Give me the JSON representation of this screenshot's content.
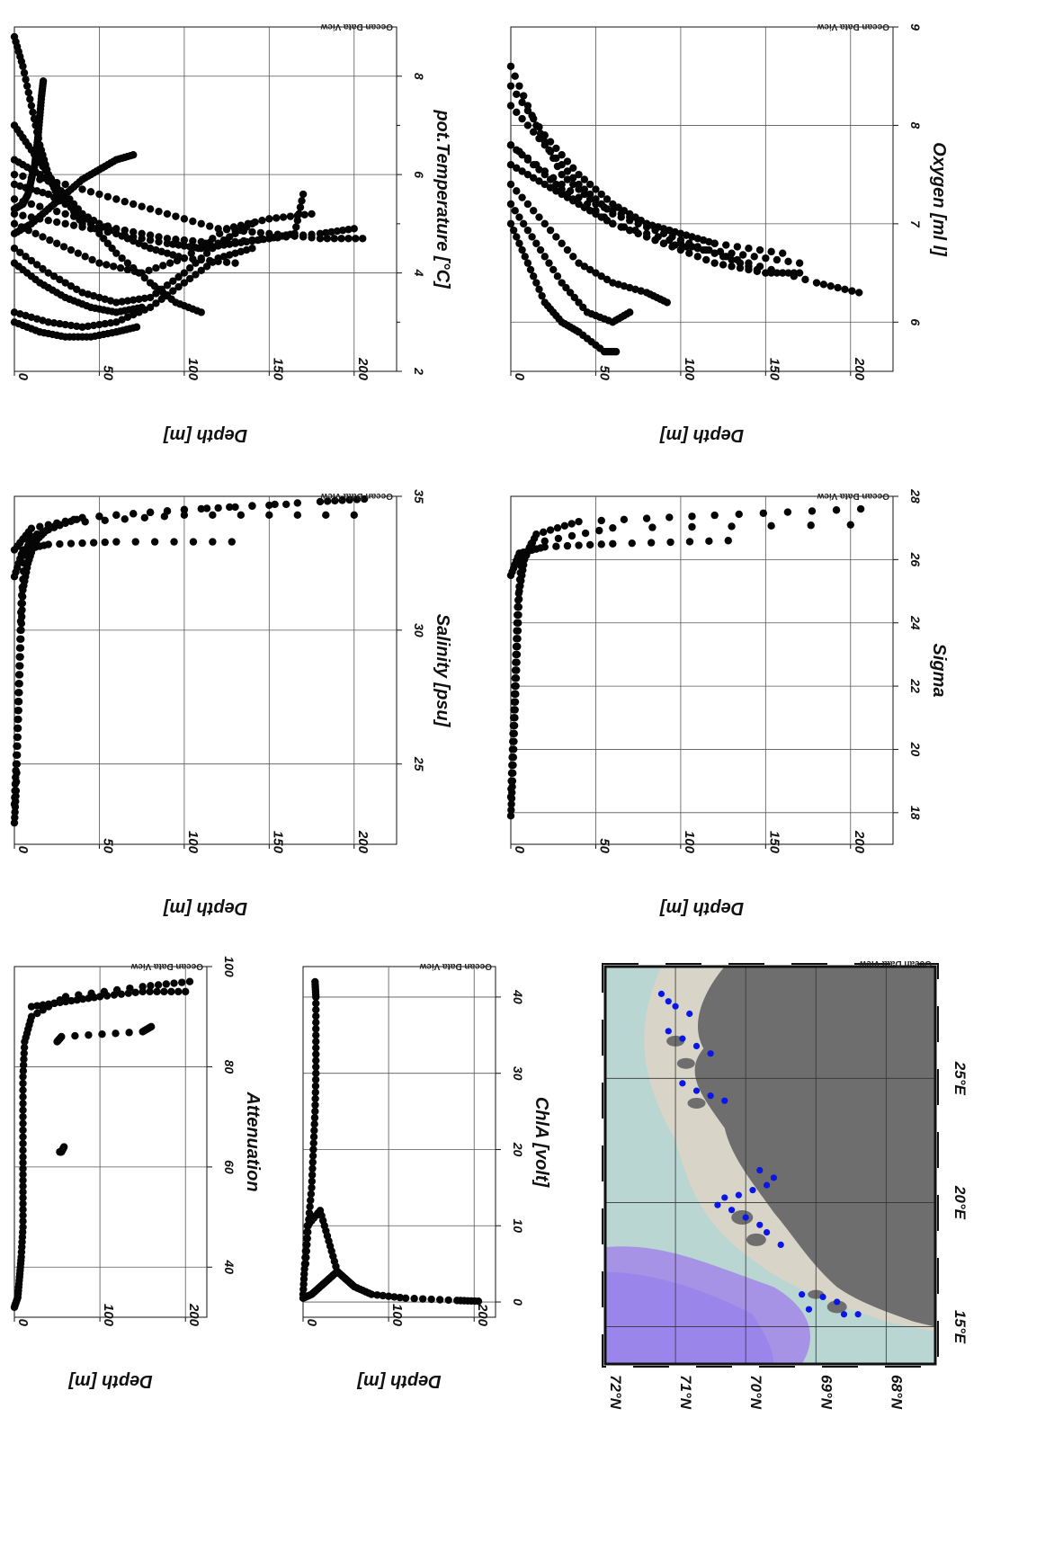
{
  "watermark": "Ocean Data View",
  "chart_data": [
    {
      "id": "temperature",
      "type": "scatter",
      "xlabel": "pot.Temperature [°C]",
      "ylabel": "Depth [m]",
      "xlim": [
        2,
        9
      ],
      "ylim": [
        0,
        225
      ],
      "x_ticks": [
        2,
        4,
        6,
        8
      ],
      "x_minor": [
        3,
        5,
        7
      ],
      "y_ticks": [
        0,
        50,
        100,
        150,
        200
      ],
      "grid": true,
      "series": [
        {
          "x": [
            5.3,
            5.4,
            5.6,
            5.9,
            6.2,
            6.5,
            6.8,
            7.2,
            7.6,
            7.9
          ],
          "y": [
            0,
            5,
            8,
            10,
            12,
            13,
            14,
            15,
            16,
            17
          ]
        },
        {
          "x": [
            4.8,
            5.0,
            5.3,
            5.6,
            5.9,
            6.1,
            6.3,
            6.4
          ],
          "y": [
            0,
            10,
            20,
            30,
            40,
            50,
            60,
            70
          ]
        },
        {
          "x": [
            6.0,
            5.8,
            5.5,
            5.2,
            4.9,
            4.8,
            4.7,
            4.7
          ],
          "y": [
            0,
            30,
            60,
            90,
            120,
            150,
            180,
            205
          ]
        },
        {
          "x": [
            5.5,
            5.2,
            4.9,
            4.7,
            4.6,
            4.7,
            4.8,
            4.9
          ],
          "y": [
            0,
            30,
            60,
            90,
            120,
            150,
            180,
            200
          ]
        },
        {
          "x": [
            5.0,
            4.6,
            4.2,
            4.0,
            4.3,
            4.9,
            5.1,
            5.2
          ],
          "y": [
            0,
            25,
            50,
            75,
            100,
            125,
            150,
            175
          ]
        },
        {
          "x": [
            4.5,
            4.0,
            3.6,
            3.4,
            3.5,
            4.0,
            4.6,
            5.0
          ],
          "y": [
            0,
            20,
            40,
            60,
            80,
            100,
            120,
            140
          ]
        },
        {
          "x": [
            3.2,
            3.0,
            2.9,
            3.0,
            3.3,
            3.8,
            4.3,
            4.5
          ],
          "y": [
            0,
            20,
            40,
            60,
            80,
            100,
            120,
            140
          ]
        },
        {
          "x": [
            3.0,
            2.8,
            2.7,
            2.7,
            2.8,
            2.9
          ],
          "y": [
            0,
            15,
            30,
            45,
            60,
            72
          ]
        },
        {
          "x": [
            5.2,
            5.0,
            4.8,
            4.6,
            4.5,
            4.6,
            4.7,
            4.8,
            5.6
          ],
          "y": [
            0,
            30,
            60,
            90,
            110,
            130,
            150,
            165,
            170
          ]
        },
        {
          "x": [
            5.8,
            5.6,
            5.2,
            4.8,
            4.5,
            4.3,
            4.2
          ],
          "y": [
            0,
            20,
            40,
            60,
            80,
            100,
            130
          ]
        },
        {
          "x": [
            6.3,
            6.0,
            5.6,
            5.0,
            4.4,
            3.8,
            3.4,
            3.2
          ],
          "y": [
            0,
            15,
            30,
            45,
            60,
            80,
            95,
            110
          ]
        },
        {
          "x": [
            4.2,
            3.8,
            3.5,
            3.3,
            3.2,
            3.3
          ],
          "y": [
            0,
            15,
            30,
            45,
            60,
            75
          ]
        },
        {
          "x": [
            7.0,
            6.5,
            6.0,
            5.5,
            5.0
          ],
          "y": [
            0,
            10,
            20,
            30,
            40
          ]
        },
        {
          "x": [
            8.8,
            8.2,
            7.4,
            6.6,
            6.0,
            5.6
          ],
          "y": [
            0,
            5,
            10,
            15,
            20,
            25
          ]
        }
      ]
    },
    {
      "id": "oxygen",
      "type": "scatter",
      "xlabel": "Oxygen [ml l]",
      "ylabel": "Depth [m]",
      "xlim": [
        5.5,
        9
      ],
      "ylim": [
        0,
        225
      ],
      "x_ticks": [
        6,
        7,
        8,
        9
      ],
      "y_ticks": [
        0,
        50,
        100,
        150,
        200
      ],
      "grid": true,
      "series": [
        {
          "x": [
            7.6,
            7.4,
            7.2,
            7.0,
            6.8,
            6.6,
            6.4,
            6.3
          ],
          "y": [
            0,
            20,
            40,
            60,
            100,
            140,
            180,
            205
          ]
        },
        {
          "x": [
            7.8,
            7.5,
            7.2,
            7.0,
            6.8,
            6.7,
            6.6
          ],
          "y": [
            0,
            20,
            40,
            60,
            90,
            130,
            170
          ]
        },
        {
          "x": [
            8.2,
            7.8,
            7.4,
            7.1,
            6.9,
            6.7,
            6.5
          ],
          "y": [
            0,
            20,
            40,
            60,
            90,
            120,
            150
          ]
        },
        {
          "x": [
            8.6,
            8.0,
            7.5,
            7.2,
            7.0,
            6.8,
            6.7
          ],
          "y": [
            0,
            15,
            30,
            50,
            80,
            120,
            160
          ]
        },
        {
          "x": [
            7.2,
            6.8,
            6.4,
            6.1,
            6.0,
            6.1
          ],
          "y": [
            0,
            15,
            30,
            45,
            60,
            70
          ]
        },
        {
          "x": [
            7.0,
            6.6,
            6.2,
            6.0,
            5.9,
            5.7,
            5.7
          ],
          "y": [
            0,
            10,
            20,
            30,
            40,
            55,
            62
          ]
        },
        {
          "x": [
            7.4,
            7.0,
            6.6,
            6.4,
            6.3,
            6.2
          ],
          "y": [
            0,
            20,
            40,
            60,
            80,
            92
          ]
        },
        {
          "x": [
            7.8,
            7.4,
            7.0,
            6.8,
            6.6,
            6.5,
            6.5
          ],
          "y": [
            0,
            30,
            60,
            90,
            120,
            150,
            170
          ]
        },
        {
          "x": [
            8.4,
            7.9,
            7.5,
            7.2,
            7.0,
            6.9,
            6.8
          ],
          "y": [
            0,
            20,
            40,
            60,
            80,
            100,
            120
          ]
        }
      ]
    },
    {
      "id": "salinity",
      "type": "scatter",
      "xlabel": "Salinity [psu]",
      "ylabel": "Depth [m]",
      "xlim": [
        22,
        35
      ],
      "ylim": [
        0,
        225
      ],
      "x_ticks": [
        25,
        30,
        35
      ],
      "y_ticks": [
        0,
        50,
        100,
        150,
        200
      ],
      "grid": true,
      "series": [
        {
          "x": [
            22.8,
            24.0,
            26.0,
            28.0,
            30.0,
            31.5,
            32.5,
            33.3,
            33.8,
            34.2,
            34.5,
            34.8,
            34.9
          ],
          "y": [
            0,
            1,
            2,
            3,
            4,
            5,
            8,
            12,
            20,
            40,
            100,
            180,
            206
          ]
        },
        {
          "x": [
            23.5,
            25.0,
            27.0,
            29.0,
            31.0,
            32.8,
            33.5,
            34.0,
            34.3,
            34.3
          ],
          "y": [
            0,
            1,
            2,
            3,
            4,
            6,
            10,
            30,
            100,
            200
          ]
        },
        {
          "x": [
            32.0,
            33.0,
            33.2,
            33.3,
            33.3
          ],
          "y": [
            0,
            5,
            20,
            60,
            128
          ]
        },
        {
          "x": [
            33.0,
            33.8,
            34.2,
            34.5,
            34.7
          ],
          "y": [
            0,
            10,
            40,
            100,
            160
          ]
        }
      ]
    },
    {
      "id": "sigma",
      "type": "scatter",
      "xlabel": "Sigma",
      "ylabel": "Depth [m]",
      "xlim": [
        17,
        28
      ],
      "ylim": [
        0,
        225
      ],
      "x_ticks": [
        18,
        20,
        22,
        24,
        26,
        28
      ],
      "y_ticks": [
        0,
        50,
        100,
        150,
        200
      ],
      "grid": true,
      "series": [
        {
          "x": [
            17.9,
            19.0,
            20.5,
            22.0,
            23.5,
            25.0,
            26.0,
            26.8,
            27.2,
            27.4,
            27.6
          ],
          "y": [
            0,
            1,
            2,
            3,
            4,
            5,
            8,
            15,
            40,
            120,
            206
          ]
        },
        {
          "x": [
            18.5,
            20.0,
            21.5,
            23.0,
            24.5,
            25.8,
            26.5,
            27.0,
            27.1
          ],
          "y": [
            0,
            1,
            2,
            3,
            4,
            6,
            12,
            60,
            200
          ]
        },
        {
          "x": [
            25.5,
            26.2,
            26.4,
            26.5,
            26.6
          ],
          "y": [
            0,
            5,
            20,
            60,
            128
          ]
        }
      ]
    },
    {
      "id": "attenuation",
      "type": "scatter",
      "xlabel": "Attenuation",
      "ylabel": "Depth [m]",
      "xlim": [
        30,
        100
      ],
      "ylim": [
        0,
        225
      ],
      "x_ticks": [
        40,
        60,
        80,
        100
      ],
      "y_ticks": [
        0,
        100,
        200
      ],
      "grid": true,
      "series": [
        {
          "x": [
            32,
            34,
            38,
            42,
            48,
            55,
            62,
            70,
            78,
            85,
            90,
            94,
            96,
            97
          ],
          "y": [
            0,
            4,
            6,
            8,
            10,
            10,
            10,
            10,
            10,
            12,
            20,
            60,
            150,
            205
          ]
        },
        {
          "x": [
            92,
            93,
            94,
            95,
            95
          ],
          "y": [
            20,
            60,
            100,
            150,
            200
          ]
        },
        {
          "x": [
            85,
            86,
            87,
            88
          ],
          "y": [
            50,
            55,
            150,
            160
          ]
        },
        {
          "x": [
            63,
            63,
            64
          ],
          "y": [
            53,
            55,
            58
          ]
        }
      ]
    },
    {
      "id": "chla",
      "type": "scatter",
      "xlabel": "ChlA [volt]",
      "ylabel": "Depth [m]",
      "xlim": [
        -2,
        44
      ],
      "ylim": [
        0,
        225
      ],
      "x_ticks": [
        0,
        10,
        20,
        30,
        40
      ],
      "y_ticks": [
        0,
        100,
        200
      ],
      "grid": true,
      "series": [
        {
          "x": [
            5,
            10,
            15,
            20,
            25,
            30,
            35,
            40,
            42
          ],
          "y": [
            3,
            6,
            10,
            12,
            14,
            15,
            15,
            15,
            14
          ]
        },
        {
          "x": [
            0.5,
            1,
            2,
            3,
            4,
            3,
            2,
            1,
            0.5,
            0.2,
            0.1
          ],
          "y": [
            0,
            10,
            20,
            30,
            40,
            50,
            60,
            80,
            120,
            180,
            205
          ]
        },
        {
          "x": [
            1,
            5,
            10,
            12,
            8,
            4
          ],
          "y": [
            0,
            2,
            5,
            20,
            30,
            40
          ]
        }
      ]
    },
    {
      "id": "map",
      "type": "map",
      "lat_labels": [
        "72°N",
        "71°N",
        "70°N",
        "69°N",
        "68°N"
      ],
      "lon_labels": [
        "15°E",
        "20°E",
        "25°E"
      ],
      "stations": [
        [
          15.5,
          68.4
        ],
        [
          15.5,
          68.6
        ],
        [
          16.0,
          68.7
        ],
        [
          16.2,
          68.9
        ],
        [
          16.3,
          69.2
        ],
        [
          15.7,
          69.1
        ],
        [
          18.3,
          69.5
        ],
        [
          18.8,
          69.7
        ],
        [
          19.1,
          69.8
        ],
        [
          19.4,
          70.0
        ],
        [
          19.7,
          70.2
        ],
        [
          19.9,
          70.4
        ],
        [
          20.2,
          70.3
        ],
        [
          20.3,
          70.1
        ],
        [
          20.5,
          69.9
        ],
        [
          20.7,
          69.7
        ],
        [
          21.0,
          69.6
        ],
        [
          21.3,
          69.8
        ],
        [
          24.1,
          70.3
        ],
        [
          24.3,
          70.5
        ],
        [
          24.5,
          70.7
        ],
        [
          24.8,
          70.9
        ],
        [
          26.0,
          70.5
        ],
        [
          26.3,
          70.7
        ],
        [
          26.6,
          70.9
        ],
        [
          26.9,
          71.1
        ],
        [
          27.6,
          70.8
        ],
        [
          27.9,
          71.0
        ],
        [
          28.1,
          71.1
        ],
        [
          28.4,
          71.2
        ]
      ],
      "colors": {
        "land": "#6e6e6e",
        "shallow": "#d8d4c8",
        "shelf": "#b9d6d2",
        "deep": "#a693e6",
        "station": "#0a16e6"
      }
    }
  ]
}
